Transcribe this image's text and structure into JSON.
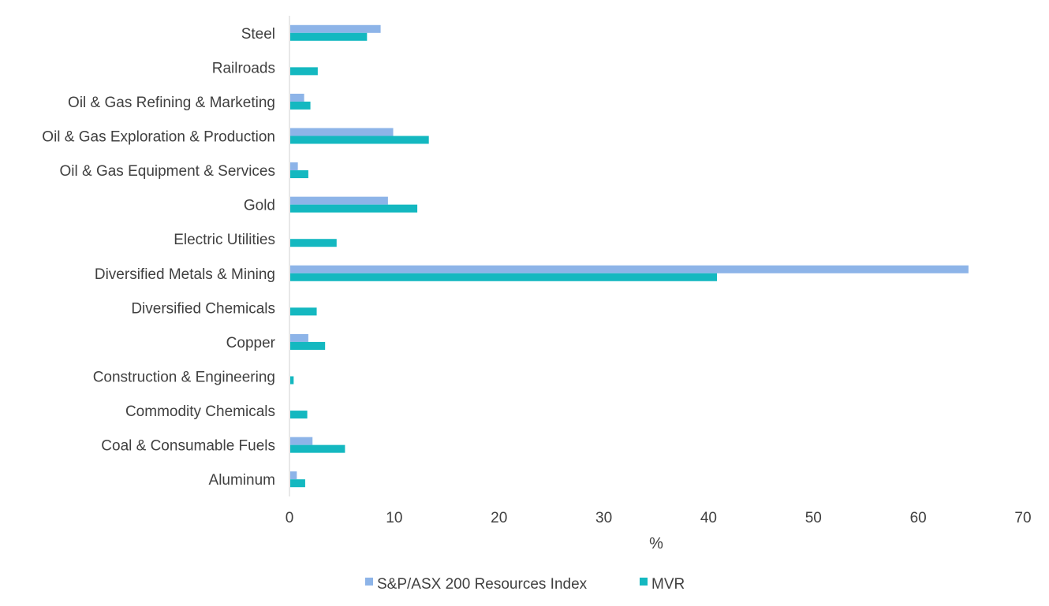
{
  "chart_data": {
    "type": "bar",
    "orientation": "horizontal",
    "categories": [
      "Steel",
      "Railroads",
      "Oil & Gas Refining & Marketing",
      "Oil & Gas Exploration & Production",
      "Oil & Gas Equipment & Services",
      "Gold",
      "Electric Utilities",
      "Diversified Metals & Mining",
      "Diversified Chemicals",
      "Copper",
      "Construction & Engineering",
      "Commodity Chemicals",
      "Coal & Consumable Fuels",
      "Aluminum"
    ],
    "series": [
      {
        "name": "S&P/ASX 200 Resources Index",
        "color": "#8DB4E8",
        "values": [
          8.7,
          0,
          1.4,
          9.9,
          0.8,
          9.4,
          0,
          64.8,
          0,
          1.8,
          0,
          0,
          2.2,
          0.7
        ]
      },
      {
        "name": "MVR",
        "color": "#14B8C0",
        "values": [
          7.4,
          2.7,
          2.0,
          13.3,
          1.8,
          12.2,
          4.5,
          40.8,
          2.6,
          3.4,
          0.4,
          1.7,
          5.3,
          1.5
        ]
      }
    ],
    "xlabel": "%",
    "xlim": [
      0,
      70
    ],
    "xticks": [
      "0",
      "10",
      "20",
      "30",
      "40",
      "50",
      "60",
      "70"
    ],
    "grid": false,
    "legend_position": "bottom"
  }
}
